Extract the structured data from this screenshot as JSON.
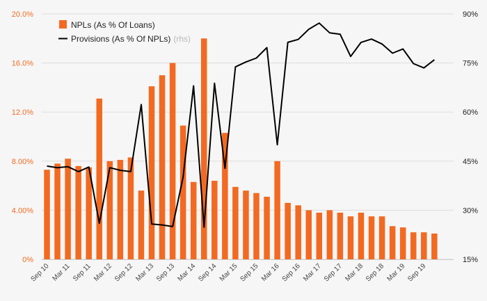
{
  "chart_data": {
    "type": "bar+line",
    "title": "",
    "colors": {
      "bars": "#f26a21",
      "line": "#000000",
      "left_axis_text": "#f26a21",
      "right_axis_text": "#222222",
      "grid": "#dddddd",
      "background": "#f6f6f6"
    },
    "legend": [
      {
        "label": "NPLs (As % Of Loans)",
        "type": "bar"
      },
      {
        "label": "Provisions (As % Of NPLs)",
        "suffix": "(rhs)",
        "type": "line"
      }
    ],
    "y_left": {
      "range": [
        0,
        20
      ],
      "ticks": [
        "0%",
        "4.00%",
        "8.00%",
        "12.0%",
        "16.0%",
        "20.0%"
      ],
      "tick_values": [
        0,
        4,
        8,
        12,
        16,
        20
      ]
    },
    "y_right": {
      "range": [
        15,
        90
      ],
      "ticks": [
        "15%",
        "30%",
        "45%",
        "60%",
        "75%",
        "90%"
      ],
      "tick_values": [
        15,
        30,
        45,
        60,
        75,
        90
      ]
    },
    "x_tick_labels": [
      "Sep 10",
      "Mar 11",
      "Sep 11",
      "Mar 12",
      "Sep 12",
      "Mar 13",
      "Sep 13",
      "Mar 14",
      "Sep 14",
      "Mar 15",
      "Sep 15",
      "Mar 16",
      "Sep 16",
      "Mar 17",
      "Sep 17",
      "Mar 18",
      "Sep 18",
      "Mar 19",
      "Sep 19"
    ],
    "series": [
      {
        "name": "NPLs (As % Of Loans)",
        "type": "bar",
        "axis": "left",
        "values": [
          7.3,
          7.8,
          8.2,
          7.6,
          7.5,
          13.1,
          8.0,
          8.1,
          8.3,
          5.6,
          14.1,
          15.0,
          16.0,
          10.9,
          6.3,
          18.0,
          6.4,
          10.3,
          5.9,
          5.6,
          5.4,
          5.1,
          8.0,
          4.6,
          4.4,
          4.0,
          3.8,
          4.0,
          3.8,
          3.5,
          3.8,
          3.5,
          3.5,
          2.7,
          2.6,
          2.2,
          2.2,
          2.1
        ]
      },
      {
        "name": "Provisions (As % Of NPLs)",
        "type": "line",
        "axis": "right",
        "values": [
          43.5,
          43.0,
          43.3,
          41.8,
          43.2,
          26.0,
          43.0,
          42.2,
          41.8,
          62.3,
          25.8,
          25.5,
          25.0,
          40.0,
          68.0,
          24.8,
          68.8,
          42.8,
          73.8,
          75.3,
          76.5,
          79.7,
          50.0,
          81.3,
          82.2,
          85.3,
          87.2,
          84.2,
          83.8,
          77.0,
          81.3,
          82.3,
          80.8,
          78.0,
          79.3,
          74.8,
          73.5,
          76.0
        ]
      }
    ]
  }
}
